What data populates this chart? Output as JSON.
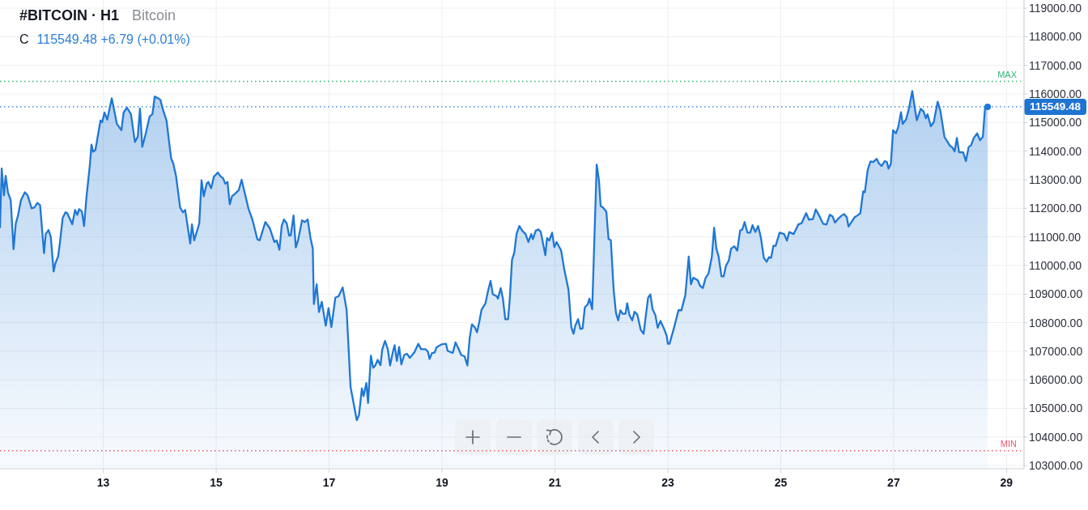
{
  "chart_data": {
    "type": "area",
    "title": "#BITCOIN · H1",
    "subtitle": "Bitcoin",
    "annotations": [
      "C 115549.48 +6.79 (+0.01%)"
    ],
    "x": [
      11.17,
      11.2,
      11.24,
      11.27,
      11.31,
      11.36,
      11.41,
      11.45,
      11.49,
      11.54,
      11.61,
      11.66,
      11.73,
      11.78,
      11.83,
      11.88,
      11.95,
      11.98,
      12.03,
      12.07,
      12.12,
      12.15,
      12.2,
      12.23,
      12.28,
      12.33,
      12.36,
      12.4,
      12.45,
      12.5,
      12.54,
      12.57,
      12.62,
      12.66,
      12.7,
      12.76,
      12.79,
      12.82,
      12.86,
      12.95,
      12.98,
      13.02,
      13.07,
      13.15,
      13.24,
      13.32,
      13.36,
      13.42,
      13.49,
      13.56,
      13.61,
      13.65,
      13.69,
      13.75,
      13.82,
      13.87,
      13.91,
      13.97,
      14.01,
      14.06,
      14.12,
      14.2,
      14.24,
      14.29,
      14.36,
      14.41,
      14.45,
      14.54,
      14.57,
      14.61,
      14.7,
      14.74,
      14.78,
      14.83,
      14.86,
      14.91,
      14.96,
      15.03,
      15.08,
      15.12,
      15.16,
      15.2,
      15.24,
      15.28,
      15.33,
      15.4,
      15.45,
      15.57,
      15.64,
      15.73,
      15.77,
      15.87,
      15.95,
      16.03,
      16.07,
      16.12,
      16.16,
      16.2,
      16.25,
      16.29,
      16.32,
      16.37,
      16.41,
      16.45,
      16.52,
      16.57,
      16.62,
      16.67,
      16.71,
      16.73,
      16.78,
      16.82,
      16.87,
      16.94,
      16.99,
      17.04,
      17.11,
      17.17,
      17.24,
      17.31,
      17.38,
      17.46,
      17.49,
      17.53,
      17.58,
      17.61,
      17.66,
      17.69,
      17.74,
      17.78,
      17.82,
      17.86,
      17.91,
      17.94,
      17.99,
      18.04,
      18.08,
      18.13,
      18.16,
      18.2,
      18.24,
      18.28,
      18.33,
      18.38,
      18.43,
      18.51,
      18.58,
      18.63,
      18.71,
      18.75,
      18.78,
      18.82,
      18.87,
      18.9,
      18.99,
      19.07,
      19.1,
      19.19,
      19.24,
      19.3,
      19.34,
      19.4,
      19.45,
      19.49,
      19.53,
      19.58,
      19.62,
      19.66,
      19.7,
      19.77,
      19.82,
      19.86,
      19.9,
      19.97,
      19.99,
      20.04,
      20.08,
      20.12,
      20.17,
      20.2,
      20.24,
      20.28,
      20.32,
      20.37,
      20.42,
      20.48,
      20.53,
      20.58,
      20.61,
      20.66,
      20.71,
      20.75,
      20.83,
      20.86,
      20.9,
      20.95,
      20.99,
      21.03,
      21.11,
      21.16,
      21.24,
      21.29,
      21.33,
      21.36,
      21.41,
      21.45,
      21.49,
      21.53,
      21.58,
      21.61,
      21.66,
      21.74,
      21.78,
      21.81,
      21.85,
      21.91,
      21.95,
      21.99,
      22.04,
      22.08,
      22.12,
      22.16,
      22.2,
      22.25,
      22.28,
      22.32,
      22.37,
      22.41,
      22.46,
      22.52,
      22.57,
      22.65,
      22.69,
      22.73,
      22.78,
      22.82,
      22.87,
      22.93,
      22.98,
      23.0,
      23.03,
      23.1,
      23.19,
      23.24,
      23.31,
      23.37,
      23.41,
      23.45,
      23.53,
      23.57,
      23.62,
      23.67,
      23.72,
      23.78,
      23.82,
      23.86,
      23.9,
      23.95,
      23.99,
      24.03,
      24.08,
      24.12,
      24.18,
      24.23,
      24.28,
      24.32,
      24.36,
      24.41,
      24.46,
      24.5,
      24.55,
      24.6,
      24.65,
      24.7,
      24.75,
      24.79,
      24.83,
      24.87,
      24.91,
      24.98,
      25.06,
      25.11,
      25.15,
      25.23,
      25.31,
      25.37,
      25.45,
      25.5,
      25.57,
      25.62,
      25.68,
      25.75,
      25.81,
      25.87,
      25.92,
      25.96,
      26.03,
      26.07,
      26.12,
      26.17,
      26.2,
      26.26,
      26.31,
      26.36,
      26.41,
      26.46,
      26.49,
      26.54,
      26.59,
      26.64,
      26.7,
      26.74,
      26.79,
      26.84,
      26.88,
      26.91,
      26.95,
      26.99,
      27.04,
      27.08,
      27.13,
      27.16,
      27.22,
      27.27,
      27.33,
      27.37,
      27.41,
      27.48,
      27.53,
      27.57,
      27.6,
      27.66,
      27.71,
      27.78,
      27.83,
      27.9,
      28.0,
      28.04,
      28.08,
      28.12,
      28.16,
      28.23,
      28.28,
      28.33,
      28.37,
      28.42,
      28.48,
      28.53,
      28.58,
      28.62,
      28.665
    ],
    "series": [
      {
        "color": "#1f77d4",
        "values": [
          111330,
          113390,
          112450,
          113140,
          112560,
          112280,
          110570,
          111470,
          111750,
          112280,
          112560,
          112450,
          112000,
          112030,
          112190,
          112110,
          110430,
          111100,
          111240,
          110990,
          109790,
          110070,
          110320,
          110770,
          111660,
          111860,
          111830,
          111660,
          111440,
          111940,
          111770,
          111970,
          111890,
          111380,
          112360,
          113480,
          114230,
          113980,
          114040,
          115070,
          115010,
          115350,
          115100,
          115850,
          114960,
          114730,
          115350,
          115520,
          115290,
          114320,
          114510,
          115490,
          114150,
          114600,
          115210,
          115290,
          115910,
          115850,
          115800,
          115430,
          115070,
          113760,
          113560,
          113110,
          112030,
          111860,
          111940,
          110770,
          111440,
          110880,
          111470,
          112980,
          112420,
          112860,
          112920,
          112700,
          113110,
          113250,
          113110,
          113060,
          112860,
          112920,
          112140,
          112420,
          112500,
          112640,
          113000,
          112000,
          111610,
          110910,
          110880,
          111520,
          111300,
          110820,
          110880,
          110550,
          111380,
          111610,
          111470,
          111050,
          111050,
          111750,
          110630,
          110880,
          111580,
          111520,
          111610,
          110960,
          110600,
          108650,
          109340,
          108370,
          108730,
          107890,
          108510,
          107840,
          108870,
          108930,
          109230,
          108450,
          105750,
          104900,
          104590,
          104770,
          105700,
          105430,
          105890,
          105190,
          106840,
          106420,
          106510,
          106700,
          106510,
          107050,
          107360,
          107070,
          106500,
          106980,
          107210,
          106660,
          107150,
          106540,
          106870,
          106910,
          106770,
          106960,
          107260,
          107070,
          107070,
          106980,
          106730,
          106930,
          106960,
          107130,
          107240,
          107260,
          107010,
          106940,
          107310,
          107050,
          106870,
          106820,
          106500,
          107470,
          107940,
          107840,
          107660,
          108030,
          108450,
          108680,
          109150,
          109460,
          108990,
          108920,
          108840,
          109210,
          108820,
          108120,
          108120,
          108820,
          110200,
          110450,
          111100,
          111380,
          111220,
          111100,
          110820,
          111100,
          110920,
          111220,
          111260,
          111170,
          110360,
          110960,
          110870,
          111150,
          110640,
          110820,
          110520,
          109920,
          109150,
          107840,
          107610,
          107890,
          108120,
          107780,
          107800,
          108540,
          108640,
          108840,
          108470,
          113530,
          112980,
          112080,
          112030,
          111890,
          110920,
          110890,
          109150,
          108360,
          108080,
          108430,
          108310,
          108310,
          108680,
          108260,
          108080,
          108380,
          108280,
          107750,
          107610,
          108870,
          108990,
          108470,
          108260,
          107820,
          108060,
          107800,
          107540,
          107260,
          107260,
          107750,
          108440,
          108430,
          108960,
          110310,
          109340,
          109570,
          109480,
          109290,
          109210,
          109570,
          109710,
          110310,
          111320,
          110590,
          110310,
          109620,
          109620,
          109990,
          110170,
          110590,
          110670,
          110520,
          111220,
          111260,
          111520,
          111150,
          111150,
          111410,
          111170,
          111380,
          110960,
          110270,
          110130,
          110290,
          110270,
          110690,
          110690,
          111150,
          111100,
          110870,
          111170,
          111100,
          111430,
          111480,
          111830,
          111600,
          111620,
          111960,
          111750,
          111460,
          111430,
          111780,
          111710,
          111500,
          111660,
          111730,
          111800,
          111690,
          111360,
          111540,
          111690,
          111750,
          111830,
          112590,
          112560,
          113340,
          113640,
          113620,
          113730,
          113570,
          113480,
          113650,
          113620,
          113390,
          113550,
          114730,
          114620,
          114830,
          115360,
          114950,
          115110,
          115480,
          116100,
          115570,
          115080,
          115480,
          115390,
          115150,
          115290,
          114870,
          115010,
          115730,
          115390,
          114500,
          114180,
          114130,
          113990,
          114460,
          113960,
          113960,
          113650,
          114150,
          114200,
          114460,
          114620,
          114380,
          114500,
          115540,
          115549.48
        ]
      },
      {
        "type": "scatter",
        "x": [
          28.665
        ],
        "values": [
          115549.48
        ],
        "color": "#1f77d4",
        "marker": "circle"
      }
    ],
    "xlim": [
      11.17,
      29.31
    ],
    "ylim": [
      102890,
      119060
    ],
    "xticks": [
      13,
      15,
      17,
      19,
      21,
      23,
      25,
      27,
      29
    ],
    "yticks": [
      {
        "value": 103000,
        "label": "103000.00"
      },
      {
        "value": 104000,
        "label": "104000.00"
      },
      {
        "value": 105000,
        "label": "105000.00"
      },
      {
        "value": 106000,
        "label": "106000.00"
      },
      {
        "value": 107000,
        "label": "107000.00"
      },
      {
        "value": 108000,
        "label": "108000.00"
      },
      {
        "value": 109000,
        "label": "109000.00"
      },
      {
        "value": 110000,
        "label": "110000.00"
      },
      {
        "value": 111000,
        "label": "111000.00"
      },
      {
        "value": 112000,
        "label": "112000.00"
      },
      {
        "value": 113000,
        "label": "113000.00"
      },
      {
        "value": 114000,
        "label": "114000.00"
      },
      {
        "value": 115000,
        "label": "115000.00"
      },
      {
        "value": 116000,
        "label": "116000.00"
      },
      {
        "value": 117000,
        "label": "117000.00"
      },
      {
        "value": 118000,
        "label": "118000.00"
      },
      {
        "value": 119000,
        "label": "119000.00"
      }
    ],
    "grid": true,
    "ref_lines": [
      {
        "axis": "y",
        "value": 116440,
        "label": "MAX",
        "color": "#33b677",
        "line_style": "dotted"
      },
      {
        "axis": "y",
        "value": 103520,
        "label": "MIN",
        "color": "#f0566a",
        "line_style": "dotted"
      },
      {
        "axis": "y",
        "value": 115549.48,
        "label": "115549.48",
        "color": "#1f74d1",
        "line_style": "dotted"
      }
    ]
  }
}
